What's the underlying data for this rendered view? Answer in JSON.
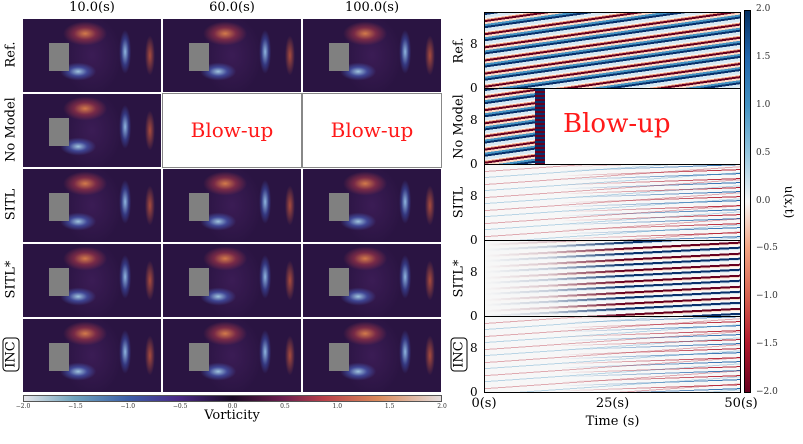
{
  "left_panel": {
    "column_titles": [
      "10.0(s)",
      "60.0(s)",
      "100.0(s)"
    ],
    "row_labels": [
      "Ref.",
      "No Model",
      "SITL",
      "SITL*",
      "INC"
    ],
    "blowup_text": "Blow-up",
    "colorbar": {
      "label": "Vorticity",
      "ticks": [
        "−2.0",
        "−1.5",
        "−1.0",
        "−0.5",
        "0.0",
        "0.5",
        "1.0",
        "1.5",
        "2.0"
      ],
      "range": [
        -2.0,
        2.0
      ]
    }
  },
  "right_panel": {
    "row_labels": [
      "Ref.",
      "No Model",
      "SITL",
      "SITL*",
      "INC"
    ],
    "y_ticks": [
      "8",
      "0"
    ],
    "x_ticks": [
      "0(s)",
      "25(s)",
      "50(s)"
    ],
    "x_label": "Time (s)",
    "blowup_text": "Blow-up",
    "colorbar": {
      "label": "u(x,t)",
      "ticks": [
        "2.0",
        "1.5",
        "1.0",
        "0.5",
        "0.0",
        "−0.5",
        "−1.0",
        "−1.5",
        "−2.0"
      ],
      "range": [
        -2.0,
        2.0
      ]
    }
  }
}
